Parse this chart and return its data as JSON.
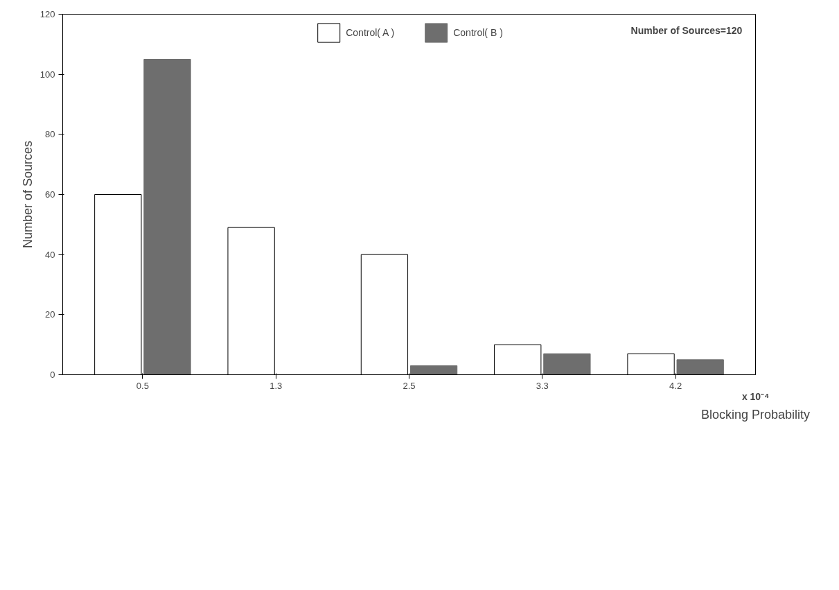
{
  "chart_data": {
    "type": "bar",
    "xlabel": "Blocking Probability",
    "ylabel": "Number of Sources",
    "categories": [
      "0.5",
      "1.3",
      "2.5",
      "3.3",
      "4.2"
    ],
    "series": [
      {
        "name": "Control( A )",
        "color": "#ffffff",
        "values": [
          60,
          49,
          40,
          10,
          7
        ]
      },
      {
        "name": "Control( B )",
        "color": "#6e6e6e",
        "values": [
          105,
          0,
          3,
          7,
          5
        ]
      }
    ],
    "ylim": [
      0,
      120
    ],
    "yticks": [
      0,
      20,
      40,
      60,
      80,
      100,
      120
    ],
    "grid": false,
    "legend": "top",
    "annotations": [
      "Number of Sources=120",
      "x 10⁻⁴"
    ]
  }
}
